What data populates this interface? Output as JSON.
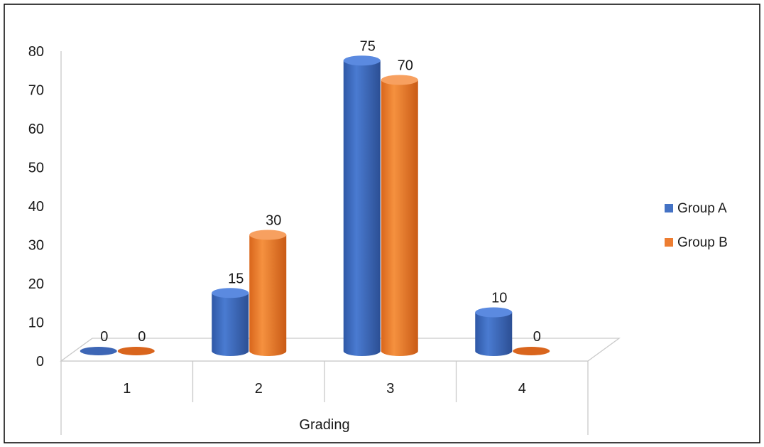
{
  "chart_data": {
    "type": "bar",
    "title": "",
    "xlabel": "Grading",
    "ylabel": "",
    "categories": [
      "1",
      "2",
      "3",
      "4"
    ],
    "series": [
      {
        "name": "Group A",
        "values": [
          0,
          15,
          75,
          10
        ],
        "color": "#4472C4"
      },
      {
        "name": "Group B",
        "values": [
          0,
          30,
          70,
          0
        ],
        "color": "#ED7D31"
      }
    ],
    "ylim": [
      0,
      80
    ],
    "yticks": [
      "0",
      "10",
      "20",
      "30",
      "40",
      "50",
      "60",
      "70",
      "80"
    ],
    "grid": false,
    "legend": "right",
    "style": "3d-cylinder"
  }
}
